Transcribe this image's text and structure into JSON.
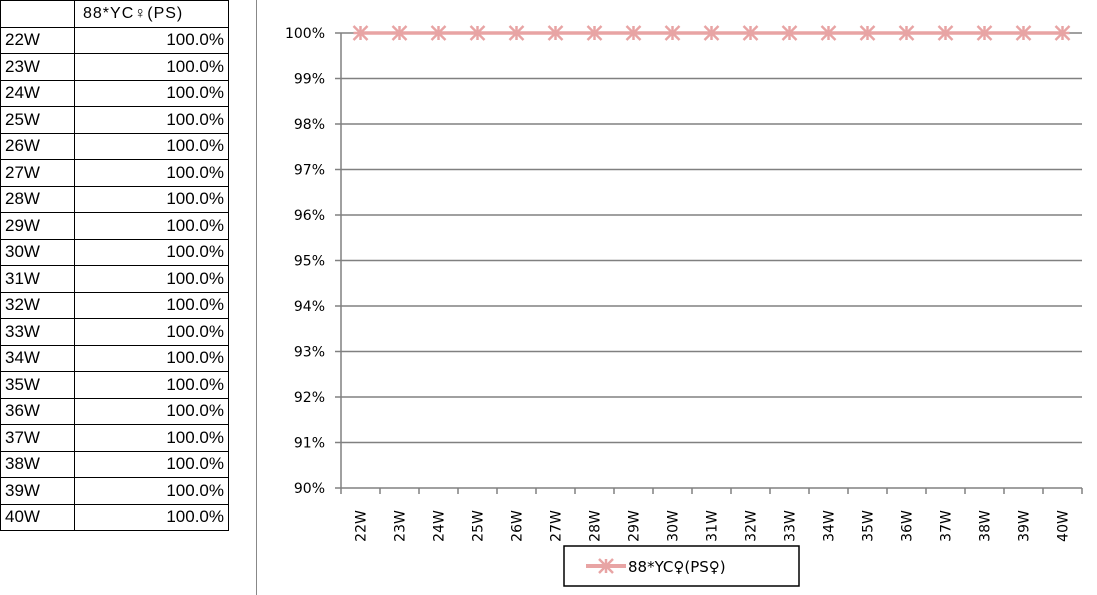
{
  "table": {
    "header": [
      "",
      "88*YC♀(PS)"
    ],
    "rows": [
      [
        "22W",
        "100.0%"
      ],
      [
        "23W",
        "100.0%"
      ],
      [
        "24W",
        "100.0%"
      ],
      [
        "25W",
        "100.0%"
      ],
      [
        "26W",
        "100.0%"
      ],
      [
        "27W",
        "100.0%"
      ],
      [
        "28W",
        "100.0%"
      ],
      [
        "29W",
        "100.0%"
      ],
      [
        "30W",
        "100.0%"
      ],
      [
        "31W",
        "100.0%"
      ],
      [
        "32W",
        "100.0%"
      ],
      [
        "33W",
        "100.0%"
      ],
      [
        "34W",
        "100.0%"
      ],
      [
        "35W",
        "100.0%"
      ],
      [
        "36W",
        "100.0%"
      ],
      [
        "37W",
        "100.0%"
      ],
      [
        "38W",
        "100.0%"
      ],
      [
        "39W",
        "100.0%"
      ],
      [
        "40W",
        "100.0%"
      ]
    ]
  },
  "chart_data": {
    "type": "line",
    "categories": [
      "22W",
      "23W",
      "24W",
      "25W",
      "26W",
      "27W",
      "28W",
      "29W",
      "30W",
      "31W",
      "32W",
      "33W",
      "34W",
      "35W",
      "36W",
      "37W",
      "38W",
      "39W",
      "40W"
    ],
    "series": [
      {
        "name": "88*YC♀(PS♀)",
        "values": [
          100,
          100,
          100,
          100,
          100,
          100,
          100,
          100,
          100,
          100,
          100,
          100,
          100,
          100,
          100,
          100,
          100,
          100,
          100
        ],
        "color": "#e8a4a4",
        "marker": "asterisk"
      }
    ],
    "yticks": [
      "90%",
      "91%",
      "92%",
      "93%",
      "94%",
      "95%",
      "96%",
      "97%",
      "98%",
      "99%",
      "100%"
    ],
    "ylim": [
      90,
      100
    ],
    "grid": true,
    "legend": "bottom"
  }
}
